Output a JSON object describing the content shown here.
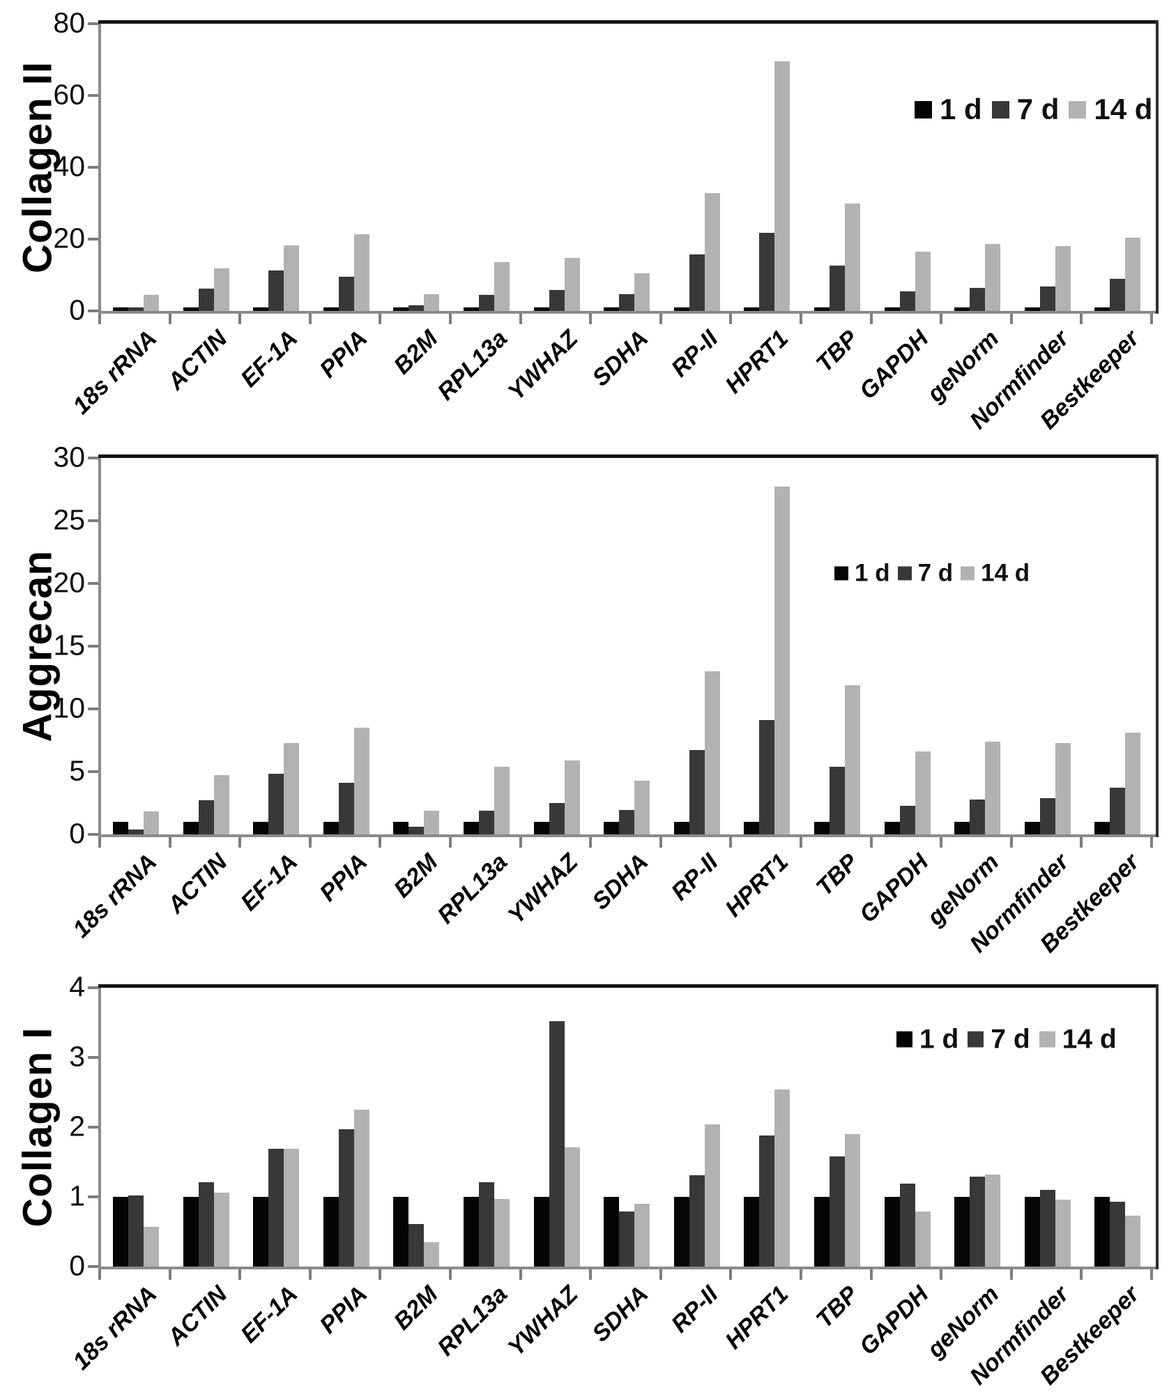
{
  "figure": {
    "description_titles": [
      "Collagen II",
      "Aggrecan",
      "Collagen I"
    ]
  },
  "chart_data": [
    {
      "id": "collagen-ii",
      "type": "bar",
      "title": "Collagen II",
      "xlabel": "",
      "ylabel": "Collagen II",
      "ylim": [
        0,
        80
      ],
      "yticks": [
        0,
        20,
        40,
        60,
        80
      ],
      "grid": false,
      "legend_position": "upper-right",
      "categories": [
        "18s rRNA",
        "ACTIN",
        "EF-1A",
        "PPIA",
        "B2M",
        "RPL13a",
        "YWHAZ",
        "SDHA",
        "RP-II",
        "HPRT1",
        "TBP",
        "GAPDH",
        "geNorm",
        "Normfinder",
        "Bestkeeper"
      ],
      "series": [
        {
          "name": "1 d",
          "color": "#050505",
          "values": [
            1,
            1,
            1,
            1,
            1,
            1,
            1,
            1,
            1,
            1,
            1,
            1,
            1,
            1,
            1
          ]
        },
        {
          "name": "7 d",
          "color": "#383838",
          "values": [
            0.9,
            6.2,
            11.3,
            9.5,
            1.6,
            4.5,
            5.8,
            4.6,
            15.7,
            21.8,
            12.7,
            5.5,
            6.5,
            6.7,
            8.9
          ]
        },
        {
          "name": "14 d",
          "color": "#b2b2b2",
          "values": [
            4.4,
            11.8,
            18.3,
            21.3,
            4.7,
            13.5,
            14.7,
            10.4,
            32.8,
            69.5,
            30.0,
            16.5,
            18.6,
            18.1,
            20.4
          ]
        }
      ]
    },
    {
      "id": "aggrecan",
      "type": "bar",
      "title": "Aggrecan",
      "xlabel": "",
      "ylabel": "Aggrecan",
      "ylim": [
        0,
        30
      ],
      "yticks": [
        0,
        5,
        10,
        15,
        20,
        25,
        30
      ],
      "grid": false,
      "legend_position": "upper-right",
      "categories": [
        "18s rRNA",
        "ACTIN",
        "EF-1A",
        "PPIA",
        "B2M",
        "RPL13a",
        "YWHAZ",
        "SDHA",
        "RP-II",
        "HPRT1",
        "TBP",
        "GAPDH",
        "geNorm",
        "Normfinder",
        "Bestkeeper"
      ],
      "series": [
        {
          "name": "1 d",
          "color": "#050505",
          "values": [
            1,
            1,
            1,
            1,
            1,
            1,
            1,
            1,
            1,
            1,
            1,
            1,
            1,
            1,
            1
          ]
        },
        {
          "name": "7 d",
          "color": "#383838",
          "values": [
            0.4,
            2.7,
            4.85,
            4.1,
            0.6,
            1.9,
            2.5,
            1.95,
            6.7,
            9.1,
            5.4,
            2.3,
            2.8,
            2.9,
            3.7
          ]
        },
        {
          "name": "14 d",
          "color": "#b2b2b2",
          "values": [
            1.85,
            4.75,
            7.3,
            8.5,
            1.9,
            5.4,
            5.9,
            4.3,
            13.0,
            27.7,
            11.9,
            6.6,
            7.4,
            7.3,
            8.1
          ]
        }
      ]
    },
    {
      "id": "collagen-i",
      "type": "bar",
      "title": "Collagen I",
      "xlabel": "",
      "ylabel": "Collagen I",
      "ylim": [
        0,
        4
      ],
      "yticks": [
        0,
        1,
        2,
        3,
        4
      ],
      "grid": false,
      "legend_position": "upper-right",
      "categories": [
        "18s rRNA",
        "ACTIN",
        "EF-1A",
        "PPIA",
        "B2M",
        "RPL13a",
        "YWHAZ",
        "SDHA",
        "RP-II",
        "HPRT1",
        "TBP",
        "GAPDH",
        "geNorm",
        "Normfinder",
        "Bestkeeper"
      ],
      "series": [
        {
          "name": "1 d",
          "color": "#050505",
          "values": [
            1,
            1,
            1,
            1,
            1,
            1,
            1,
            1,
            1,
            1,
            1,
            1,
            1,
            1,
            1
          ]
        },
        {
          "name": "7 d",
          "color": "#383838",
          "values": [
            1.02,
            1.21,
            1.69,
            1.97,
            0.61,
            1.21,
            3.52,
            0.79,
            1.31,
            1.88,
            1.58,
            1.19,
            1.29,
            1.1,
            0.93
          ]
        },
        {
          "name": "14 d",
          "color": "#b2b2b2",
          "values": [
            0.57,
            1.06,
            1.69,
            2.25,
            0.35,
            0.97,
            1.71,
            0.9,
            2.04,
            2.54,
            1.9,
            0.79,
            1.32,
            0.96,
            0.73
          ]
        }
      ]
    }
  ]
}
